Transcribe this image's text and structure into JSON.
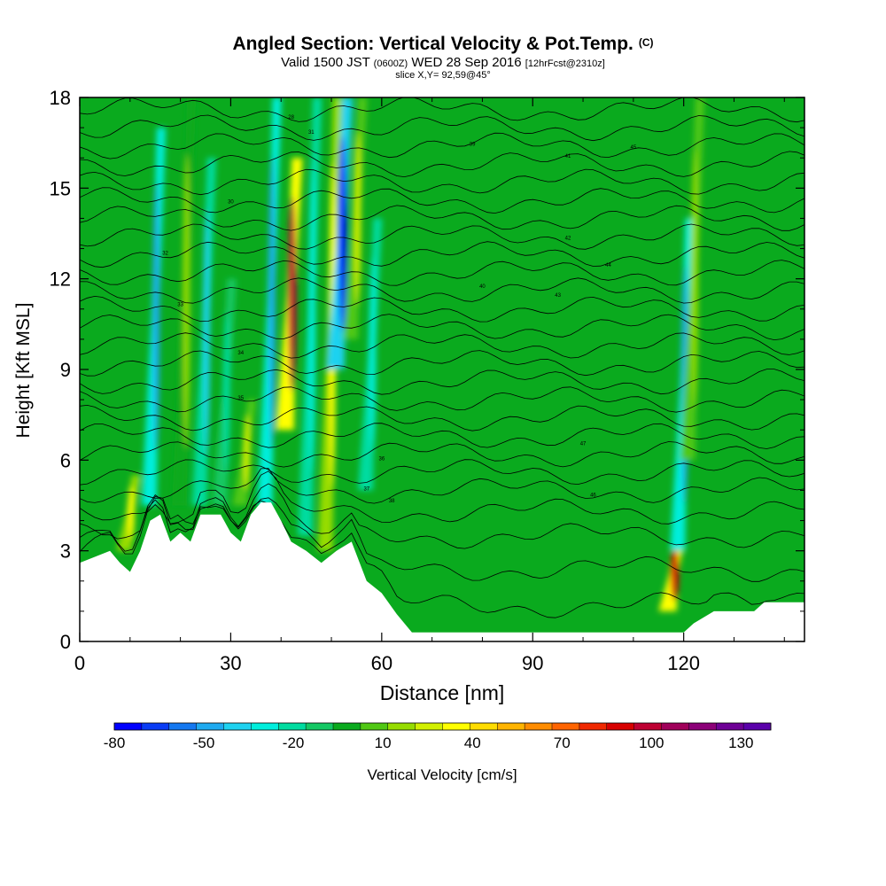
{
  "figure": {
    "title": "Angled Section: Vertical Velocity & Pot.Temp.",
    "title_badge": "(C)",
    "subtitle_valid": "Valid 1500 JST",
    "subtitle_utc": "(0600Z)",
    "subtitle_date": "WED 28 Sep 2016",
    "subtitle_fcst": "[12hrFcst@2310z]",
    "slice_label": "slice X,Y= 92,59@45°"
  },
  "chart_data": {
    "type": "heatmap",
    "xlabel": "Distance [nm]",
    "ylabel": "Height [Kft MSL]",
    "xlim": [
      0,
      144
    ],
    "ylim": [
      0,
      18
    ],
    "x_ticks": [
      "0",
      "30",
      "60",
      "90",
      "120"
    ],
    "x_tick_values": [
      0,
      30,
      60,
      90,
      120
    ],
    "y_ticks": [
      "0",
      "3",
      "6",
      "9",
      "12",
      "15",
      "18"
    ],
    "y_tick_values": [
      0,
      3,
      6,
      9,
      12,
      15,
      18
    ],
    "colorbar": {
      "label": "Vertical Velocity [cm/s]",
      "min": -80,
      "max": 140,
      "step": 10,
      "tick_labels": [
        "-80",
        "-50",
        "-20",
        "10",
        "40",
        "70",
        "100",
        "130"
      ],
      "tick_values": [
        -80,
        -50,
        -20,
        10,
        40,
        70,
        100,
        130
      ],
      "colors": [
        "#0000ff",
        "#0a3cf5",
        "#1478f0",
        "#1eaaf0",
        "#1ed2f0",
        "#00eedc",
        "#00dca0",
        "#14c864",
        "#0aaa1e",
        "#50c814",
        "#96dc00",
        "#d2f000",
        "#ffff00",
        "#ffdc00",
        "#ffb400",
        "#ff8c00",
        "#ff6400",
        "#f02800",
        "#d70000",
        "#be0032",
        "#a0005a",
        "#8c0078",
        "#6e0096",
        "#5a00aa"
      ]
    },
    "velocity_features": [
      {
        "x": 10,
        "z_bottom": 3.0,
        "z_top": 5.5,
        "w": 45
      },
      {
        "x": 15,
        "z_bottom": 4.5,
        "z_top": 17.0,
        "w": -50
      },
      {
        "x": 21,
        "z_bottom": 4.5,
        "z_top": 18.0,
        "w": 20
      },
      {
        "x": 25,
        "z_bottom": 4.5,
        "z_top": 16.0,
        "w": -40
      },
      {
        "x": 29,
        "z_bottom": 4.5,
        "z_top": 12.0,
        "w": -20
      },
      {
        "x": 33,
        "z_bottom": 4.5,
        "z_top": 8.0,
        "w": 30
      },
      {
        "x": 38,
        "z_bottom": 4.5,
        "z_top": 18.0,
        "w": -45
      },
      {
        "x": 42,
        "z_bottom": 7.0,
        "z_top": 16.0,
        "w": 110
      },
      {
        "x": 46,
        "z_bottom": 3.5,
        "z_top": 18.0,
        "w": -30
      },
      {
        "x": 50,
        "z_bottom": 3.0,
        "z_top": 18.0,
        "w": 45
      },
      {
        "x": 52,
        "z_bottom": 9.0,
        "z_top": 18.0,
        "w": -80
      },
      {
        "x": 55,
        "z_bottom": 10.0,
        "z_top": 18.0,
        "w": 35
      },
      {
        "x": 58,
        "z_bottom": 5.0,
        "z_top": 14.0,
        "w": -25
      },
      {
        "x": 118,
        "z_bottom": 1.0,
        "z_top": 3.5,
        "w": 100
      },
      {
        "x": 120,
        "z_bottom": 3.0,
        "z_top": 14.0,
        "w": -45
      },
      {
        "x": 122,
        "z_bottom": 6.0,
        "z_top": 18.0,
        "w": 25
      }
    ],
    "theta_contours": {
      "levels_label_values": [
        "28",
        "30",
        "31",
        "32",
        "33",
        "34",
        "35",
        "36",
        "37",
        "38",
        "39",
        "40",
        "41",
        "42",
        "43",
        "44",
        "45",
        "46",
        "47"
      ],
      "base_heights": [
        1.2,
        2.4,
        3.5,
        4.3,
        5.0,
        5.6,
        6.2,
        6.8,
        7.4,
        8.0,
        8.6,
        9.2,
        9.8,
        10.4,
        11.0,
        11.6,
        12.2,
        12.8,
        13.4,
        14.0,
        14.6,
        15.2,
        15.8,
        16.4,
        17.0,
        17.6
      ]
    },
    "terrain": [
      [
        0,
        2.6
      ],
      [
        6,
        3.0
      ],
      [
        8,
        2.6
      ],
      [
        10,
        2.3
      ],
      [
        12,
        3.0
      ],
      [
        14,
        4.0
      ],
      [
        16,
        4.2
      ],
      [
        18,
        3.3
      ],
      [
        20,
        3.6
      ],
      [
        22,
        3.3
      ],
      [
        24,
        4.2
      ],
      [
        28,
        4.2
      ],
      [
        30,
        3.6
      ],
      [
        32,
        3.3
      ],
      [
        34,
        4.2
      ],
      [
        36,
        4.6
      ],
      [
        38,
        4.6
      ],
      [
        40,
        4.0
      ],
      [
        42,
        3.3
      ],
      [
        45,
        3.0
      ],
      [
        48,
        2.6
      ],
      [
        51,
        3.0
      ],
      [
        54,
        3.3
      ],
      [
        57,
        2.0
      ],
      [
        60,
        1.6
      ],
      [
        63,
        0.9
      ],
      [
        66,
        0.3
      ],
      [
        110,
        0.3
      ],
      [
        114,
        0.3
      ],
      [
        118,
        0.3
      ],
      [
        120,
        0.3
      ],
      [
        122,
        0.6
      ],
      [
        126,
        1.0
      ],
      [
        134,
        1.0
      ],
      [
        136,
        1.3
      ],
      [
        144,
        1.3
      ]
    ],
    "grid": false,
    "legend": "colorbar-bottom"
  }
}
